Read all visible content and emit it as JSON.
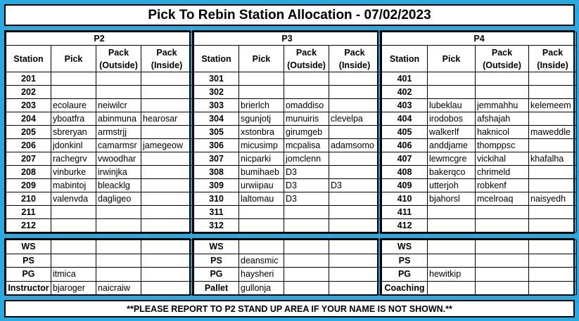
{
  "title": "Pick To Rebin Station Allocation - 07/02/2023",
  "headers": {
    "station": "Station",
    "pick": "Pick",
    "pack_outside": "Pack (Outside)",
    "pack_inside": "Pack (Inside)"
  },
  "groups": [
    {
      "name": "P2",
      "rows": [
        {
          "station": "201",
          "pick": "",
          "out": "",
          "in": ""
        },
        {
          "station": "202",
          "pick": "",
          "out": "",
          "in": ""
        },
        {
          "station": "203",
          "pick": "ecolaure",
          "out": "neiwilcr",
          "in": ""
        },
        {
          "station": "204",
          "pick": "yboatfra",
          "out": "abinmuna",
          "in": "hearosar"
        },
        {
          "station": "205",
          "pick": "sbreryan",
          "out": "armstrjj",
          "in": ""
        },
        {
          "station": "206",
          "pick": "jdonkinl",
          "out": "camarmsr",
          "in": "jamegeow"
        },
        {
          "station": "207",
          "pick": "rachegrv",
          "out": "vwoodhar",
          "in": ""
        },
        {
          "station": "208",
          "pick": "vinburke",
          "out": "irwinjka",
          "in": ""
        },
        {
          "station": "209",
          "pick": "mabintoj",
          "out": "bleacklg",
          "in": ""
        },
        {
          "station": "210",
          "pick": "valenvda",
          "out": "dagligeo",
          "in": ""
        },
        {
          "station": "211",
          "pick": "",
          "out": "",
          "in": ""
        },
        {
          "station": "212",
          "pick": "",
          "out": "",
          "in": ""
        }
      ],
      "roles": [
        {
          "role": "WS",
          "a": "",
          "b": ""
        },
        {
          "role": "PS",
          "a": "",
          "b": ""
        },
        {
          "role": "PG",
          "a": "itmica",
          "b": ""
        },
        {
          "role": "Instructor",
          "a": "bjaroger",
          "b": "naicraiw"
        }
      ]
    },
    {
      "name": "P3",
      "rows": [
        {
          "station": "301",
          "pick": "",
          "out": "",
          "in": ""
        },
        {
          "station": "302",
          "pick": "",
          "out": "",
          "in": ""
        },
        {
          "station": "303",
          "pick": "brierlch",
          "out": "omaddiso",
          "in": ""
        },
        {
          "station": "304",
          "pick": "sgunjotj",
          "out": "munuiris",
          "in": "clevelpa"
        },
        {
          "station": "305",
          "pick": "xstonbra",
          "out": "girumgeb",
          "in": ""
        },
        {
          "station": "306",
          "pick": "micusimp",
          "out": "mcpalisa",
          "in": "adamsomo"
        },
        {
          "station": "307",
          "pick": "nicparki",
          "out": "jomclenn",
          "in": ""
        },
        {
          "station": "308",
          "pick": "bumihaeb",
          "out": "D3",
          "in": ""
        },
        {
          "station": "309",
          "pick": "urwiipau",
          "out": "D3",
          "in": "D3"
        },
        {
          "station": "310",
          "pick": "laltomau",
          "out": "D3",
          "in": ""
        },
        {
          "station": "311",
          "pick": "",
          "out": "",
          "in": ""
        },
        {
          "station": "312",
          "pick": "",
          "out": "",
          "in": ""
        }
      ],
      "roles": [
        {
          "role": "WS",
          "a": "",
          "b": ""
        },
        {
          "role": "PS",
          "a": "deansmic",
          "b": ""
        },
        {
          "role": "PG",
          "a": "haysheri",
          "b": ""
        },
        {
          "role": "Pallet",
          "a": "gullonja",
          "b": ""
        }
      ]
    },
    {
      "name": "P4",
      "rows": [
        {
          "station": "401",
          "pick": "",
          "out": "",
          "in": ""
        },
        {
          "station": "402",
          "pick": "",
          "out": "",
          "in": ""
        },
        {
          "station": "403",
          "pick": "lubeklau",
          "out": "jemmahhu",
          "in": "kelemeem"
        },
        {
          "station": "404",
          "pick": "irodobos",
          "out": "afshajah",
          "in": ""
        },
        {
          "station": "405",
          "pick": "walkerlf",
          "out": "haknicol",
          "in": "maweddle"
        },
        {
          "station": "406",
          "pick": "anddjame",
          "out": "thomppsc",
          "in": ""
        },
        {
          "station": "407",
          "pick": "lewmcgre",
          "out": "vickihal",
          "in": "khafalha"
        },
        {
          "station": "408",
          "pick": "bakerqco",
          "out": "chrimeld",
          "in": ""
        },
        {
          "station": "409",
          "pick": "utterjoh",
          "out": "robkenf",
          "in": ""
        },
        {
          "station": "410",
          "pick": "bjahorsl",
          "out": "mcelroaq",
          "in": "naisyedh"
        },
        {
          "station": "411",
          "pick": "",
          "out": "",
          "in": ""
        },
        {
          "station": "412",
          "pick": "",
          "out": "",
          "in": ""
        }
      ],
      "roles": [
        {
          "role": "WS",
          "a": "",
          "b": ""
        },
        {
          "role": "PS",
          "a": "",
          "b": ""
        },
        {
          "role": "PG",
          "a": "hewitkip",
          "b": ""
        },
        {
          "role": "Coaching",
          "a": "",
          "b": ""
        }
      ]
    }
  ],
  "notice": "**PLEASE REPORT TO P2 STAND UP AREA IF YOUR NAME IS NOT SHOWN.**",
  "colors": {
    "background": "#29abe2",
    "panel": "#ffffff",
    "border": "#000000"
  }
}
